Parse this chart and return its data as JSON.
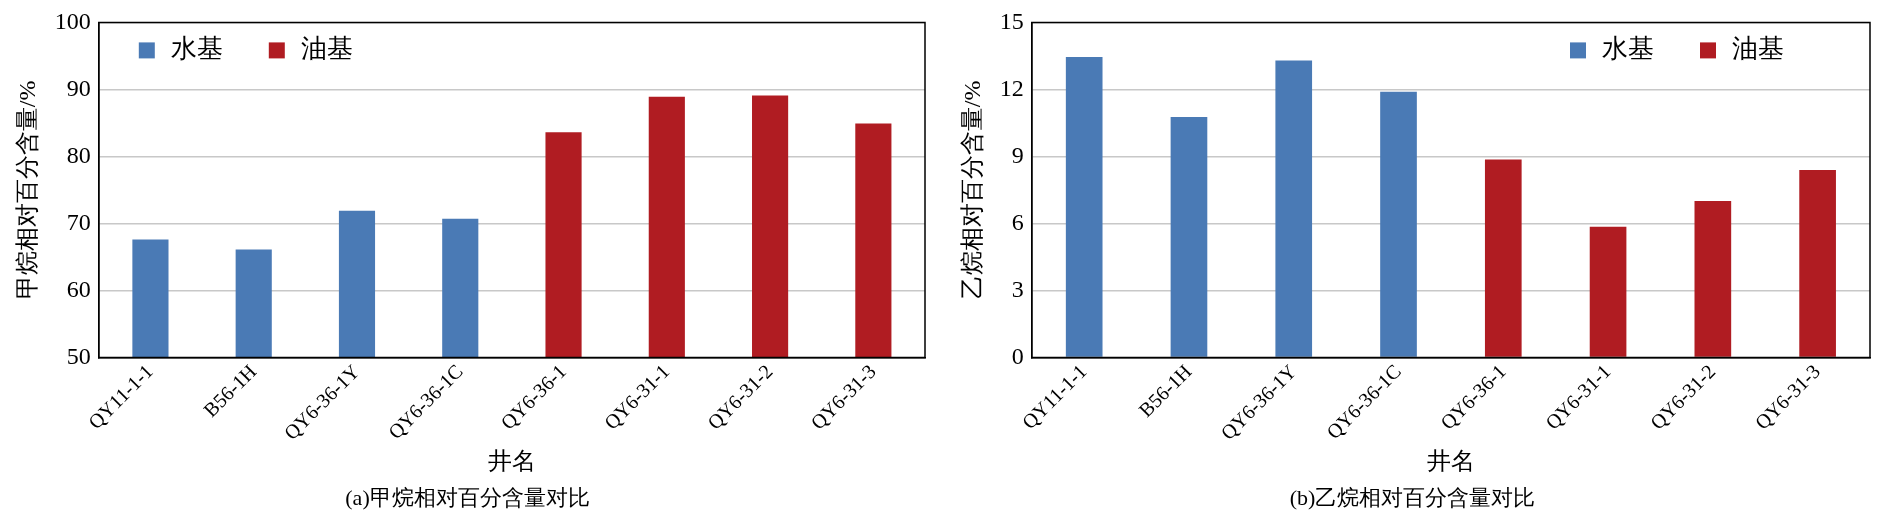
{
  "chart_data": [
    {
      "type": "bar",
      "title": "(a)甲烷相对百分含量对比",
      "xlabel": "井名",
      "ylabel": "甲烷相对百分含量/%",
      "categories": [
        "QY11-1-1",
        "B56-1H",
        "QY6-36-1Y",
        "QY6-36-1C",
        "QY6-36-1",
        "QY6-31-1",
        "QY6-31-2",
        "QY6-31-3"
      ],
      "series": [
        {
          "name": "水基",
          "color": "#4a7ab5",
          "values": [
            67.6,
            66.1,
            71.9,
            70.7,
            null,
            null,
            null,
            null
          ]
        },
        {
          "name": "油基",
          "color": "#b01c22",
          "values": [
            null,
            null,
            null,
            null,
            83.6,
            88.9,
            89.1,
            84.9
          ]
        }
      ],
      "ylim": [
        50,
        100
      ],
      "yticks": [
        50,
        60,
        70,
        80,
        90,
        100
      ],
      "grid": "y",
      "legend": "top left"
    },
    {
      "type": "bar",
      "title": "(b)乙烷相对百分含量对比",
      "xlabel": "井名",
      "ylabel": "乙烷相对百分含量/%",
      "categories": [
        "QY11-1-1",
        "B56-1H",
        "QY6-36-1Y",
        "QY6-36-1C",
        "QY6-36-1",
        "QY6-31-1",
        "QY6-31-2",
        "QY6-31-3"
      ],
      "series": [
        {
          "name": "水基",
          "color": "#4a7ab5",
          "values": [
            13.45,
            10.76,
            13.3,
            11.9,
            null,
            null,
            null,
            null
          ]
        },
        {
          "name": "油基",
          "color": "#b01c22",
          "values": [
            null,
            null,
            null,
            null,
            8.86,
            5.85,
            7.0,
            8.39
          ]
        }
      ],
      "ylim": [
        0,
        15
      ],
      "yticks": [
        0,
        3,
        6,
        9,
        12,
        15
      ],
      "grid": "y",
      "legend": "top right"
    }
  ]
}
